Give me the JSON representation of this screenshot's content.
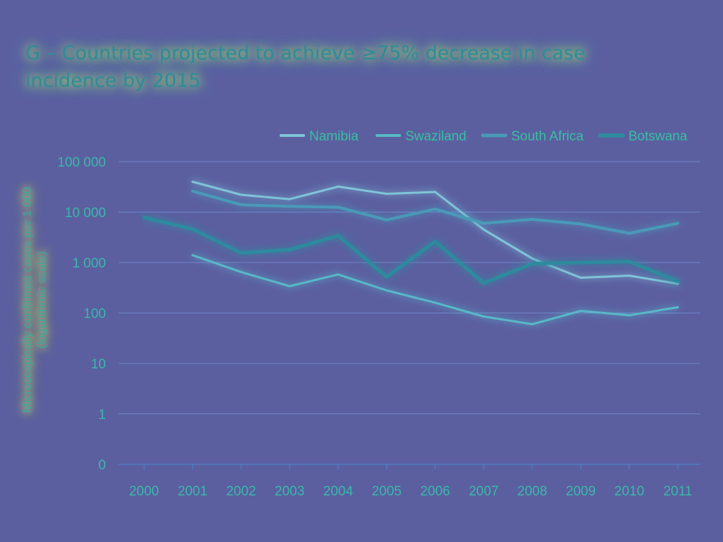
{
  "chart_data": {
    "type": "line",
    "title_line1": "G – Countries projected to achieve ≥75% decrease in case",
    "title_line2": "incidence by 2015",
    "ylabel_line1": "Microscopically confirmed cases per 1 000",
    "ylabel_line2": "(logarithmic scale)",
    "yscale": "log",
    "y_ticks": [
      0.1,
      1,
      10,
      100,
      1000,
      10000,
      100000
    ],
    "y_tick_labels": [
      "0",
      "1",
      "10",
      "100",
      "1 000",
      "10 000",
      "100 000"
    ],
    "categories": [
      "2000",
      "2001",
      "2002",
      "2003",
      "2004",
      "2005",
      "2006",
      "2007",
      "2008",
      "2009",
      "2010",
      "2011"
    ],
    "legend_position": "top-right",
    "grid": true,
    "series": [
      {
        "name": "Namibia",
        "color": "#7fc4d8",
        "width": 3,
        "values": [
          null,
          40000,
          22000,
          18000,
          32000,
          23000,
          25000,
          4500,
          1200,
          500,
          550,
          380
        ]
      },
      {
        "name": "Swaziland",
        "color": "#58b8c8",
        "width": 3,
        "values": [
          null,
          1400,
          650,
          340,
          580,
          280,
          160,
          85,
          60,
          110,
          90,
          130
        ]
      },
      {
        "name": "South Africa",
        "color": "#4a9ab8",
        "width": 4,
        "values": [
          null,
          26000,
          14000,
          13000,
          12500,
          7000,
          11500,
          6000,
          7200,
          5800,
          3800,
          6000
        ]
      },
      {
        "name": "Botswana",
        "color": "#2f8a9e",
        "width": 5,
        "values": [
          7800,
          4600,
          1550,
          1800,
          3400,
          520,
          2600,
          390,
          950,
          1000,
          1050,
          420
        ]
      }
    ]
  }
}
